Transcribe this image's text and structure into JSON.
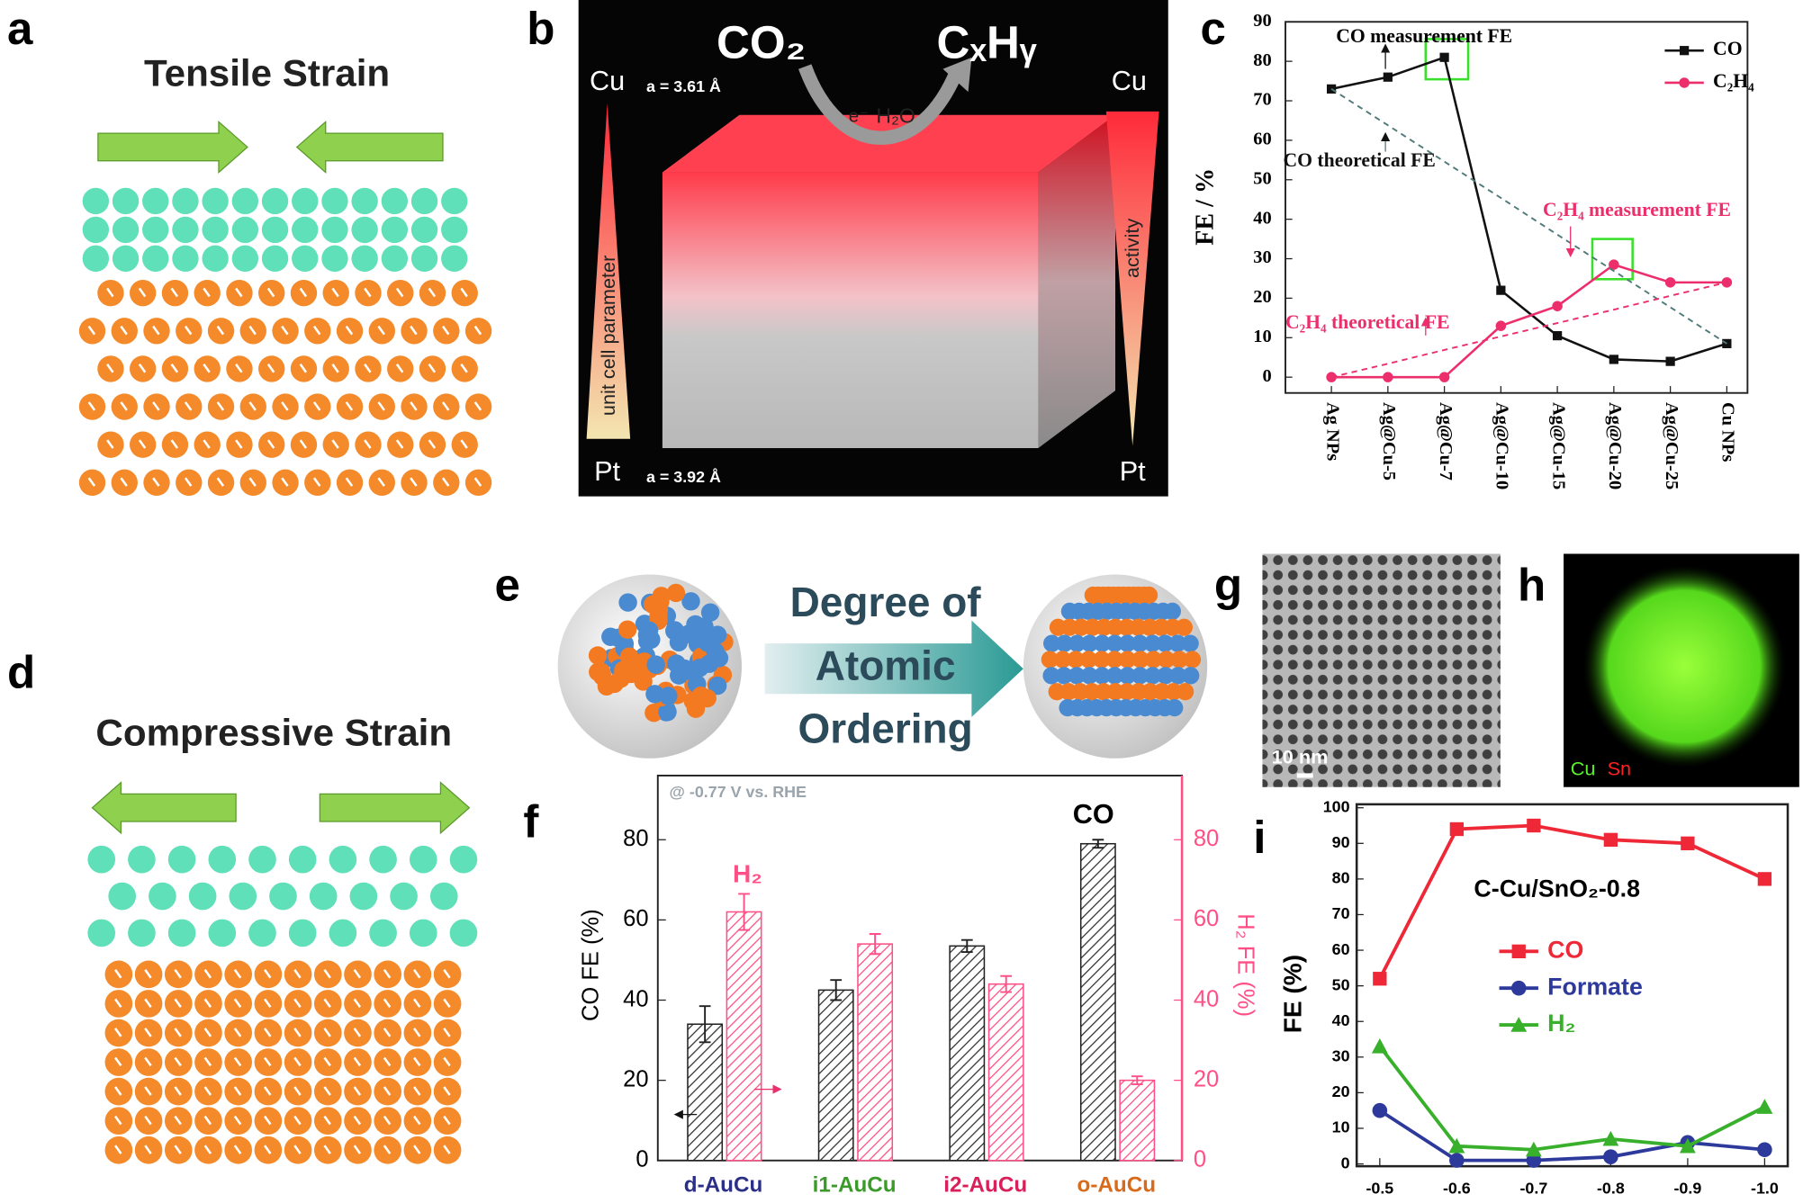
{
  "panels": {
    "a": {
      "label": "a",
      "title": "Tensile Strain"
    },
    "b": {
      "label": "b",
      "reactant": "CO₂",
      "product": "CₓHᵧ",
      "electron": "e⁻",
      "water": "H₂O",
      "top_left": "Cu",
      "top_param": "a = 3.61 Å",
      "bottom_left": "Pt",
      "bottom_param": "a = 3.92 Å",
      "left_arrow": "unit cell parameter",
      "right_arrow": "activity",
      "top_right": "Cu",
      "bottom_right": "Pt"
    },
    "c": {
      "label": "c"
    },
    "d": {
      "label": "d",
      "title": "Compressive Strain"
    },
    "e": {
      "label": "e",
      "arrow": [
        "Degree of",
        "Atomic",
        "Ordering"
      ]
    },
    "f": {
      "label": "f"
    },
    "g": {
      "label": "g",
      "scale_bar": "10 nm"
    },
    "h": {
      "label": "h",
      "elements": [
        "Cu",
        "Sn"
      ]
    },
    "i": {
      "label": "i"
    }
  },
  "chart_data": [
    {
      "type": "line",
      "ylabel": "FE / %",
      "categories": [
        "Ag NPs",
        "Ag@Cu-5",
        "Ag@Cu-7",
        "Ag@Cu-10",
        "Ag@Cu-15",
        "Ag@Cu-20",
        "Ag@Cu-25",
        "Cu NPs"
      ],
      "ylim": [
        -4,
        90
      ],
      "yticks": [
        0,
        10,
        20,
        30,
        40,
        50,
        60,
        70,
        80,
        90
      ],
      "series": [
        {
          "name": "CO",
          "color": "#111111",
          "marker": "square",
          "values": [
            73,
            76,
            81,
            22,
            10.5,
            4.5,
            4,
            8.5
          ]
        },
        {
          "name": "C₂H₄",
          "color": "#ec2f6c",
          "marker": "circle",
          "values": [
            0,
            0,
            0,
            13,
            18,
            28.5,
            24,
            24
          ]
        },
        {
          "name": "CO theoretical FE",
          "color": "#4f7a78",
          "dash": true,
          "values": [
            73,
            63.8,
            54.6,
            45.4,
            36.1,
            26.9,
            17.7,
            8.5
          ]
        },
        {
          "name": "C₂H₄ theoretical FE",
          "color": "#ec2f6c",
          "dash": true,
          "values": [
            0,
            3.4,
            6.9,
            10.3,
            13.7,
            17.1,
            20.6,
            24
          ]
        }
      ],
      "annotations": [
        "CO measurement FE",
        "C₂H₄ measurement FE"
      ]
    },
    {
      "type": "bar",
      "annotation": "@ -0.77 V vs. RHE",
      "ylabel": "CO FE (%)",
      "y2label": "H₂ FE (%)",
      "categories": [
        "d-AuCu",
        "i1-AuCu",
        "i2-AuCu",
        "o-AuCu"
      ],
      "category_colors": [
        "#2b2f86",
        "#3a9a2a",
        "#d8205a",
        "#d86a1a"
      ],
      "ylim": [
        0,
        96
      ],
      "yticks": [
        0,
        20,
        40,
        60,
        80
      ],
      "y2lim": [
        0,
        96
      ],
      "y2ticks": [
        0,
        20,
        40,
        60,
        80
      ],
      "series": [
        {
          "name": "CO",
          "color": "#222222",
          "values": [
            34,
            42.5,
            53.5,
            79
          ],
          "errors": [
            4.5,
            2.5,
            1.5,
            1
          ]
        },
        {
          "name": "H₂",
          "color": "#ff4f86",
          "axis": "y2",
          "values": [
            62,
            54,
            44,
            20
          ],
          "errors": [
            4.5,
            2.5,
            2,
            1
          ]
        }
      ]
    },
    {
      "type": "line",
      "ylabel": "FE (%)",
      "annotation": "C-Cu/SnO₂-0.8",
      "x": [
        -0.5,
        -0.6,
        -0.7,
        -0.8,
        -0.9,
        -1.0
      ],
      "xlim": [
        -0.47,
        -1.03
      ],
      "xticks": [
        -0.5,
        -0.6,
        -0.7,
        -0.8,
        -0.9,
        {
          "value": -1,
          "label": "-1.0"
        }
      ],
      "ylim": [
        0,
        100
      ],
      "yticks": [
        0,
        10,
        20,
        30,
        40,
        50,
        60,
        70,
        80,
        90,
        100
      ],
      "series": [
        {
          "name": "CO",
          "color": "#ee2836",
          "marker": "square",
          "values": [
            52,
            94,
            95,
            91,
            90,
            80
          ]
        },
        {
          "name": "Formate",
          "color": "#2d3a9c",
          "marker": "circle",
          "values": [
            15,
            1,
            1,
            2,
            6,
            4
          ]
        },
        {
          "name": "H₂",
          "color": "#38b02c",
          "marker": "triangle",
          "values": [
            33,
            5,
            4,
            7,
            5,
            16
          ]
        }
      ]
    }
  ]
}
